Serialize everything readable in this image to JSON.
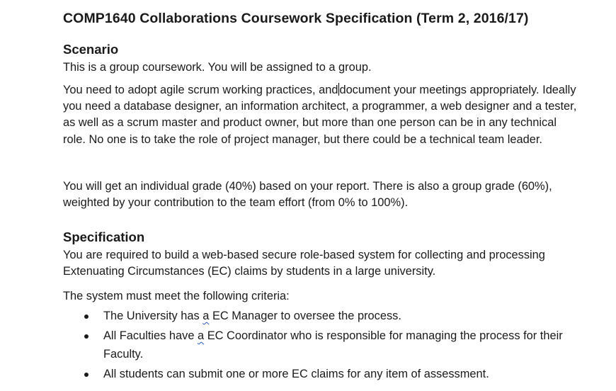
{
  "document": {
    "title": "COMP1640 Collaborations Coursework Specification (Term 2, 2016/17)",
    "scenario": {
      "heading": "Scenario",
      "para1": "This is a group coursework.  You will be assigned to a group.",
      "para2_before_caret": "You need to adopt agile scrum working practices, and",
      "para2_after_caret": "document your meetings appropriately.  Ideally you need a database designer, an information architect, a programmer, a web designer and a tester, as well as a scrum master and product owner, but more than one person can be in any technical role.  No one is to take the role of project manager, but there could be a technical team leader.",
      "para3": "You will get an individual grade (40%) based on your report.  There is also a group grade (60%), weighted by your contribution to the team effort (from 0% to 100%)."
    },
    "specification": {
      "heading": "Specification",
      "para1": "You are required to build a web-based secure role-based system for collecting and processing Extenuating Circumstances (EC) claims by students in a large university.",
      "criteria_intro": "The system must meet the following criteria:",
      "criteria": [
        {
          "before": "The University has ",
          "flag": "a",
          "after": " EC Manager to oversee the process."
        },
        {
          "before": "All Faculties have ",
          "flag": "a",
          "after": " EC Coordinator who is responsible for managing the process for their Faculty."
        },
        {
          "before": "All students can submit one or more EC claims for any item of assessment.",
          "flag": "",
          "after": ""
        }
      ]
    }
  }
}
